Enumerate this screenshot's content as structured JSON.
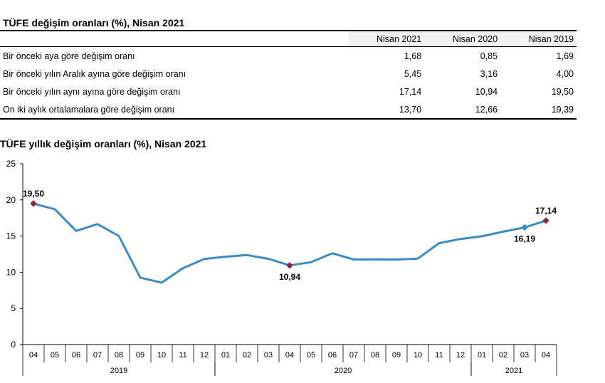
{
  "table": {
    "title": "TÜFE değişim oranları (%), Nisan 2021",
    "columns": [
      "Nisan 2021",
      "Nisan 2020",
      "Nisan 2019"
    ],
    "rows": [
      {
        "label": "Bir önceki aya göre değişim oranı",
        "values": [
          "1,68",
          "0,85",
          "1,69"
        ]
      },
      {
        "label": "Bir önceki yılın Aralık ayına göre değişim oranı",
        "values": [
          "5,45",
          "3,16",
          "4,00"
        ]
      },
      {
        "label": "Bir önceki yılın aynı ayına göre değişim oranı",
        "values": [
          "17,14",
          "10,94",
          "19,50"
        ]
      },
      {
        "label": "On iki aylık ortalamalara göre değişim oranı",
        "values": [
          "13,70",
          "12,66",
          "19,39"
        ]
      }
    ]
  },
  "chart_data": {
    "type": "line",
    "title": "TÜFE yıllık değişim oranları (%), Nisan 2021",
    "xlabel": "",
    "ylabel": "",
    "ylim": [
      0,
      25
    ],
    "yticks": [
      0,
      5,
      10,
      15,
      20,
      25
    ],
    "categories": [
      "04",
      "05",
      "06",
      "07",
      "08",
      "09",
      "10",
      "11",
      "12",
      "01",
      "02",
      "03",
      "04",
      "05",
      "06",
      "07",
      "08",
      "09",
      "10",
      "11",
      "12",
      "01",
      "02",
      "03",
      "04"
    ],
    "year_groups": [
      {
        "label": "2019",
        "start": 0,
        "end": 8
      },
      {
        "label": "2020",
        "start": 9,
        "end": 20
      },
      {
        "label": "2021",
        "start": 21,
        "end": 24
      }
    ],
    "series": [
      {
        "values": [
          19.5,
          18.71,
          15.72,
          16.65,
          15.01,
          9.26,
          8.55,
          10.56,
          11.84,
          12.15,
          12.37,
          11.86,
          10.94,
          11.39,
          12.62,
          11.76,
          11.77,
          11.75,
          11.89,
          14.03,
          14.6,
          14.97,
          15.61,
          16.19,
          17.14
        ],
        "color": "#3a8cc8"
      }
    ],
    "annotations": [
      {
        "index": 0,
        "label": "19,50",
        "marker": "diamond",
        "color": "#8b2a3c",
        "position": "above"
      },
      {
        "index": 12,
        "label": "10,94",
        "marker": "diamond",
        "color": "#8b2a3c",
        "position": "below"
      },
      {
        "index": 23,
        "label": "16,19",
        "marker": "diamond",
        "color": "#3a8cc8",
        "position": "below"
      },
      {
        "index": 24,
        "label": "17,14",
        "marker": "diamond",
        "color": "#8b2a3c",
        "position": "above"
      }
    ],
    "grid": false,
    "legend": "none"
  }
}
